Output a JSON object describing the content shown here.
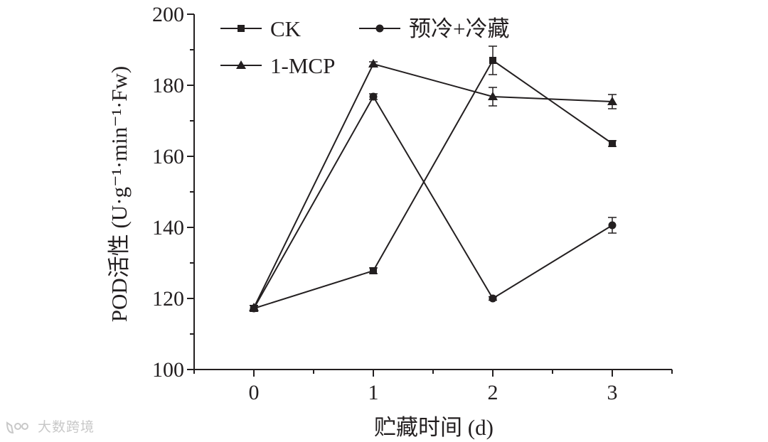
{
  "chart_data": {
    "type": "line",
    "title": "",
    "xlabel": "贮藏时间 (d)",
    "ylabel": "POD活性 (U·g⁻¹·min⁻¹·Fw)",
    "x": [
      0,
      1,
      2,
      3
    ],
    "x_tick_labels": [
      "0",
      "1",
      "2",
      "3"
    ],
    "xlim": [
      -0.5,
      3.5
    ],
    "ylim": [
      100,
      200
    ],
    "y_ticks": [
      100,
      120,
      140,
      160,
      180,
      200
    ],
    "y_tick_labels": [
      "100",
      "120",
      "140",
      "160",
      "180",
      "200"
    ],
    "grid": false,
    "legend_placement": "top",
    "series": [
      {
        "name": "CK",
        "marker": "square",
        "values": [
          117.2,
          127.8,
          187,
          163.6
        ],
        "errors": [
          0.8,
          0.8,
          4,
          0.8
        ]
      },
      {
        "name": "预冷+冷藏",
        "marker": "circle",
        "values": [
          117.2,
          176.8,
          120,
          140.6
        ],
        "errors": [
          0.8,
          0.8,
          0.5,
          2.2
        ]
      },
      {
        "name": "1-MCP",
        "marker": "triangle",
        "values": [
          117.4,
          186,
          176.8,
          175.4
        ],
        "errors": [
          0.6,
          0.6,
          2.6,
          2
        ]
      }
    ]
  },
  "watermark": {
    "text": "大数跨境",
    "logo": "kol-logo-icon"
  },
  "colors": {
    "ink": "#231f20",
    "watermark": "#c8c8c8"
  }
}
